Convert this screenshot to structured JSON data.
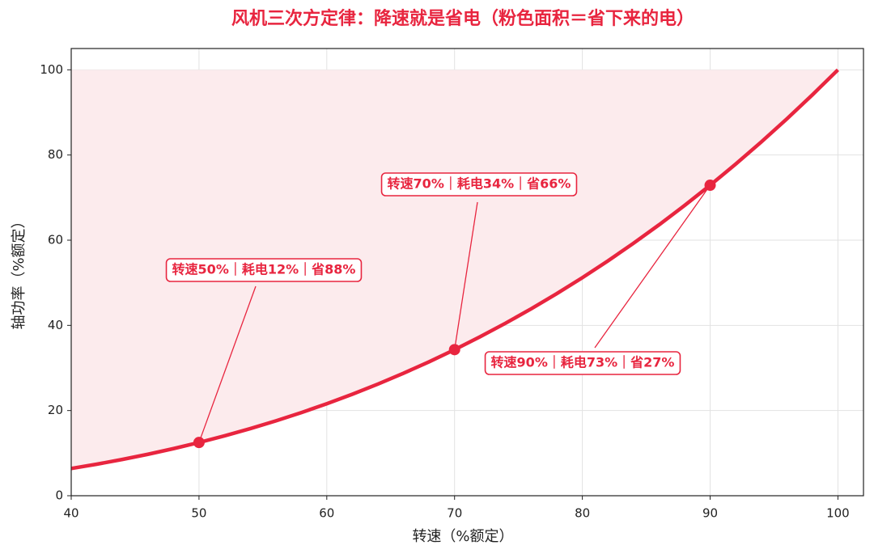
{
  "chart_data": {
    "type": "line",
    "title": "风机三次方定律：降速就是省电（粉色面积＝省下来的电）",
    "x_label": "转速（%额定）",
    "y_label": "轴功率（%额定）",
    "x": [
      40,
      42,
      44,
      46,
      48,
      50,
      52,
      54,
      56,
      58,
      60,
      62,
      64,
      66,
      68,
      70,
      72,
      74,
      76,
      78,
      80,
      82,
      84,
      86,
      88,
      90,
      92,
      94,
      96,
      98,
      100
    ],
    "series": [
      {
        "color": "#e8253f",
        "values": [
          6.4,
          7.4088,
          8.5184,
          9.7336,
          11.0592,
          12.5,
          14.0608,
          15.7464,
          17.5616,
          19.5112,
          21.6,
          23.8328,
          26.2144,
          28.7496,
          31.4432,
          34.3,
          37.3248,
          40.5224,
          43.8976,
          47.4552,
          51.2,
          55.1368,
          59.2704,
          63.6056,
          68.1472,
          72.9,
          77.8688,
          83.0584,
          88.4736,
          94.1192,
          100
        ]
      }
    ],
    "fill_color": "#fcebed",
    "annotations": [
      {
        "x": 50,
        "y": 12.5,
        "text": "转速50%｜耗电12%｜省88%"
      },
      {
        "x": 70,
        "y": 34.3,
        "text": "转速70%｜耗电34%｜省66%"
      },
      {
        "x": 90,
        "y": 72.9,
        "text": "转速90%｜耗电73%｜省27%"
      }
    ],
    "xlim": [
      40,
      102
    ],
    "ylim": [
      0,
      105
    ],
    "xticks": [
      40,
      50,
      60,
      70,
      80,
      90,
      100
    ],
    "yticks": [
      0,
      20,
      40,
      60,
      80,
      100
    ],
    "grid": true
  }
}
